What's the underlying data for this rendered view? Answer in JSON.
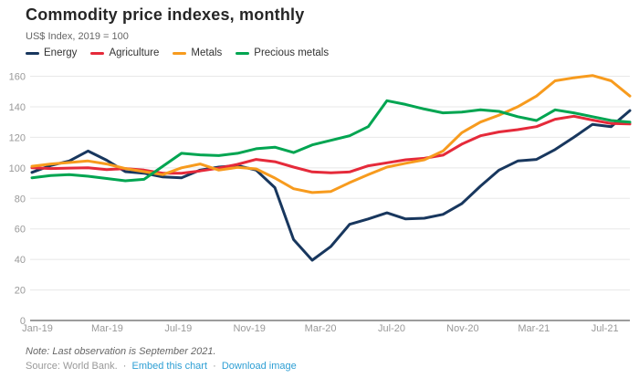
{
  "header": {
    "title": "Commodity price indexes, monthly",
    "subtitle": "US$ Index, 2019 = 100"
  },
  "chart_data": {
    "type": "line",
    "title": "Commodity price indexes, monthly",
    "subtitle": "US$ Index, 2019 = 100",
    "x_tick_labels": [
      "Jan-19",
      "Mar-19",
      "Jul-19",
      "Nov-19",
      "Mar-20",
      "Jul-20",
      "Nov-20",
      "Mar-21",
      "Jul-21"
    ],
    "x_range_months": [
      "Jan-2019",
      "Sep-2021"
    ],
    "n_points": 33,
    "ylim": [
      0,
      160
    ],
    "yticks": [
      0,
      20,
      40,
      60,
      80,
      100,
      120,
      140,
      160
    ],
    "grid": true,
    "legend_position": "top",
    "colors": {
      "grid": "#e8e8e8",
      "axis": "#9c9c9c",
      "tick_text": "#999999"
    },
    "series": [
      {
        "name": "Energy",
        "color": "#18375e",
        "values": [
          97,
          101.5,
          104.5,
          111,
          105,
          97.5,
          96.5,
          94,
          93.5,
          98.5,
          100.5,
          101.5,
          98.5,
          87,
          53,
          39.5,
          48.5,
          63,
          66.5,
          70.5,
          66.5,
          67,
          69.5,
          76.5,
          88,
          98.5,
          104.5,
          105.5,
          112,
          120,
          128.5,
          127,
          137.5
        ]
      },
      {
        "name": "Agriculture",
        "color": "#e52a3a",
        "values": [
          100,
          99.5,
          99.8,
          100,
          98.8,
          99.5,
          98.5,
          96.5,
          96.5,
          98,
          99.8,
          102.3,
          105.5,
          104,
          100.5,
          97.3,
          96.8,
          97.3,
          101.3,
          103.3,
          105.3,
          106.2,
          108.3,
          115.5,
          121,
          123.5,
          125,
          127,
          131.8,
          133.8,
          131.3,
          129,
          128.7
        ]
      },
      {
        "name": "Metals",
        "color": "#f79b1e",
        "values": [
          101,
          102.5,
          103.5,
          104.5,
          102.5,
          99.5,
          97.5,
          95.5,
          100,
          102.5,
          98.5,
          100.3,
          99.3,
          93.3,
          86.3,
          83.8,
          84.5,
          90.3,
          95.5,
          100.5,
          103,
          105.3,
          111,
          123,
          130,
          134.5,
          140,
          147,
          157,
          159,
          160.5,
          157,
          147
        ]
      },
      {
        "name": "Precious metals",
        "color": "#00a551",
        "values": [
          93.5,
          95,
          95.5,
          94.5,
          93,
          91.5,
          92.5,
          101,
          109.5,
          108.5,
          108,
          109.5,
          112.5,
          113.5,
          110,
          115,
          118,
          121,
          127,
          144,
          141.5,
          138.5,
          136,
          136.5,
          138,
          137,
          133.5,
          131,
          138,
          136,
          133.5,
          131,
          130
        ]
      }
    ]
  },
  "footer": {
    "note": "Note: Last observation is September 2021.",
    "source": "Source: World Bank.",
    "separator": "·",
    "links": [
      "Embed this chart",
      "Download image"
    ]
  }
}
